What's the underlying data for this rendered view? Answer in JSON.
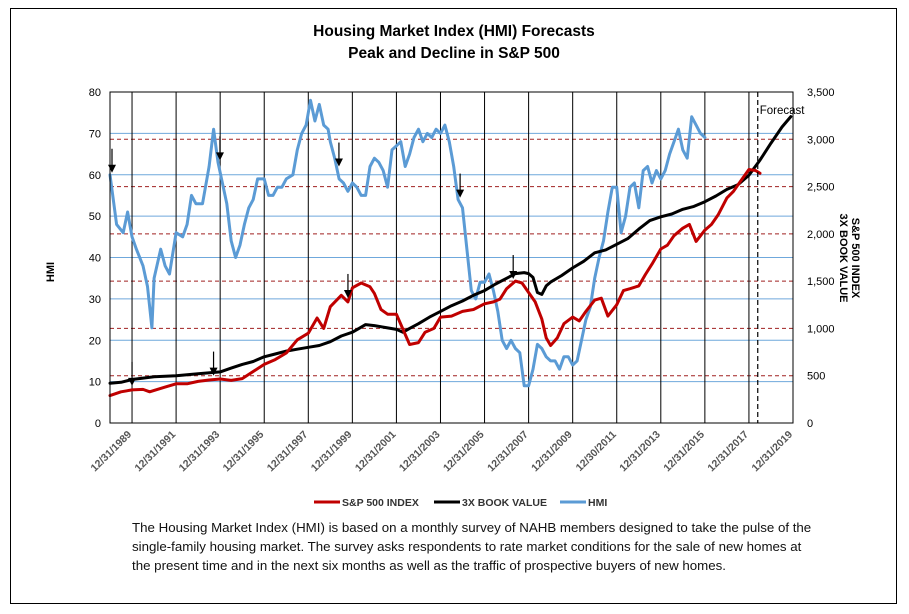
{
  "chart_data": {
    "type": "line",
    "title": "Housing Market Index (HMI) Forecasts",
    "subtitle": "Peak and Decline in S&P 500",
    "ylabel_left": "HMI",
    "ylabel_right_line1": "S&P 500 INDEX",
    "ylabel_right_line2": "3X BOOK VALUE",
    "ylim_left": [
      0,
      80
    ],
    "ylim_right": [
      0,
      3500
    ],
    "xlim": [
      1989.0,
      2020.0
    ],
    "yticks_left": [
      "0",
      "10",
      "20",
      "30",
      "40",
      "50",
      "60",
      "70",
      "80"
    ],
    "yticks_right": [
      "0",
      "500",
      "1,000",
      "1,500",
      "2,000",
      "2,500",
      "3,000",
      "3,500"
    ],
    "xticks": [
      {
        "x": 1990.0,
        "label": "12/31/1989"
      },
      {
        "x": 1992.0,
        "label": "12/31/1991"
      },
      {
        "x": 1994.0,
        "label": "12/31/1993"
      },
      {
        "x": 1996.0,
        "label": "12/31/1995"
      },
      {
        "x": 1998.0,
        "label": "12/31/1997"
      },
      {
        "x": 2000.0,
        "label": "12/31/1999"
      },
      {
        "x": 2002.0,
        "label": "12/31/2001"
      },
      {
        "x": 2004.0,
        "label": "12/31/2003"
      },
      {
        "x": 2006.0,
        "label": "12/31/2005"
      },
      {
        "x": 2008.0,
        "label": "12/31/2007"
      },
      {
        "x": 2010.0,
        "label": "12/31/2009"
      },
      {
        "x": 2012.0,
        "label": "12/30/2011"
      },
      {
        "x": 2014.0,
        "label": "12/31/2013"
      },
      {
        "x": 2016.0,
        "label": "12/31/2015"
      },
      {
        "x": 2018.0,
        "label": "12/31/2017"
      },
      {
        "x": 2020.0,
        "label": "12/31/2019"
      }
    ],
    "legend_position": "bottom",
    "forecast_label": "Forecast",
    "forecast_x": 2018.4,
    "series": [
      {
        "name": "S&P 500 INDEX",
        "axis": "right",
        "color": "#C00000",
        "points": [
          [
            1989.0,
            290
          ],
          [
            1989.5,
            330
          ],
          [
            1990.0,
            350
          ],
          [
            1990.5,
            355
          ],
          [
            1990.8,
            330
          ],
          [
            1991.0,
            345
          ],
          [
            1991.5,
            380
          ],
          [
            1992.0,
            415
          ],
          [
            1992.5,
            415
          ],
          [
            1993.0,
            440
          ],
          [
            1993.5,
            455
          ],
          [
            1994.0,
            465
          ],
          [
            1994.5,
            450
          ],
          [
            1995.0,
            470
          ],
          [
            1995.5,
            545
          ],
          [
            1996.0,
            620
          ],
          [
            1996.5,
            670
          ],
          [
            1997.0,
            740
          ],
          [
            1997.5,
            880
          ],
          [
            1998.0,
            950
          ],
          [
            1998.4,
            1110
          ],
          [
            1998.7,
            1000
          ],
          [
            1999.0,
            1230
          ],
          [
            1999.5,
            1350
          ],
          [
            1999.8,
            1280
          ],
          [
            2000.0,
            1430
          ],
          [
            2000.4,
            1480
          ],
          [
            2000.8,
            1440
          ],
          [
            2001.0,
            1370
          ],
          [
            2001.3,
            1200
          ],
          [
            2001.6,
            1150
          ],
          [
            2002.0,
            1150
          ],
          [
            2002.3,
            990
          ],
          [
            2002.6,
            830
          ],
          [
            2003.0,
            850
          ],
          [
            2003.3,
            960
          ],
          [
            2003.7,
            1000
          ],
          [
            2004.0,
            1120
          ],
          [
            2004.5,
            1130
          ],
          [
            2005.0,
            1180
          ],
          [
            2005.5,
            1200
          ],
          [
            2006.0,
            1260
          ],
          [
            2006.4,
            1280
          ],
          [
            2006.7,
            1310
          ],
          [
            2007.0,
            1420
          ],
          [
            2007.4,
            1500
          ],
          [
            2007.7,
            1480
          ],
          [
            2008.0,
            1380
          ],
          [
            2008.3,
            1280
          ],
          [
            2008.6,
            1100
          ],
          [
            2008.8,
            900
          ],
          [
            2009.0,
            820
          ],
          [
            2009.3,
            900
          ],
          [
            2009.6,
            1050
          ],
          [
            2010.0,
            1120
          ],
          [
            2010.3,
            1080
          ],
          [
            2010.6,
            1180
          ],
          [
            2011.0,
            1300
          ],
          [
            2011.3,
            1320
          ],
          [
            2011.6,
            1130
          ],
          [
            2012.0,
            1250
          ],
          [
            2012.3,
            1400
          ],
          [
            2012.6,
            1420
          ],
          [
            2013.0,
            1450
          ],
          [
            2013.3,
            1570
          ],
          [
            2013.6,
            1680
          ],
          [
            2014.0,
            1840
          ],
          [
            2014.3,
            1880
          ],
          [
            2014.6,
            1980
          ],
          [
            2015.0,
            2060
          ],
          [
            2015.3,
            2100
          ],
          [
            2015.6,
            1920
          ],
          [
            2016.0,
            2040
          ],
          [
            2016.3,
            2100
          ],
          [
            2016.6,
            2200
          ],
          [
            2017.0,
            2380
          ],
          [
            2017.3,
            2450
          ],
          [
            2017.6,
            2550
          ],
          [
            2018.0,
            2680
          ],
          [
            2018.3,
            2670
          ],
          [
            2018.5,
            2640
          ]
        ]
      },
      {
        "name": "3X BOOK VALUE",
        "axis": "right",
        "color": "#000000",
        "points": [
          [
            1989.0,
            420
          ],
          [
            1989.5,
            430
          ],
          [
            1990.0,
            460
          ],
          [
            1991.0,
            490
          ],
          [
            1992.0,
            500
          ],
          [
            1993.0,
            520
          ],
          [
            1994.0,
            540
          ],
          [
            1994.5,
            580
          ],
          [
            1995.0,
            620
          ],
          [
            1995.5,
            650
          ],
          [
            1996.0,
            700
          ],
          [
            1996.5,
            730
          ],
          [
            1997.0,
            760
          ],
          [
            1997.5,
            780
          ],
          [
            1998.0,
            800
          ],
          [
            1998.5,
            820
          ],
          [
            1999.0,
            860
          ],
          [
            1999.5,
            920
          ],
          [
            2000.0,
            960
          ],
          [
            2000.3,
            1000
          ],
          [
            2000.6,
            1040
          ],
          [
            2001.0,
            1030
          ],
          [
            2001.5,
            1010
          ],
          [
            2002.0,
            990
          ],
          [
            2002.3,
            960
          ],
          [
            2002.6,
            1000
          ],
          [
            2003.0,
            1050
          ],
          [
            2003.5,
            1120
          ],
          [
            2004.0,
            1180
          ],
          [
            2004.5,
            1240
          ],
          [
            2005.0,
            1290
          ],
          [
            2005.5,
            1350
          ],
          [
            2006.0,
            1400
          ],
          [
            2006.5,
            1470
          ],
          [
            2007.0,
            1530
          ],
          [
            2007.4,
            1580
          ],
          [
            2007.8,
            1590
          ],
          [
            2008.0,
            1580
          ],
          [
            2008.2,
            1540
          ],
          [
            2008.4,
            1380
          ],
          [
            2008.6,
            1360
          ],
          [
            2008.8,
            1450
          ],
          [
            2009.0,
            1490
          ],
          [
            2009.5,
            1560
          ],
          [
            2010.0,
            1640
          ],
          [
            2010.5,
            1710
          ],
          [
            2011.0,
            1800
          ],
          [
            2011.5,
            1830
          ],
          [
            2012.0,
            1890
          ],
          [
            2012.5,
            1950
          ],
          [
            2013.0,
            2050
          ],
          [
            2013.5,
            2140
          ],
          [
            2014.0,
            2180
          ],
          [
            2014.5,
            2210
          ],
          [
            2015.0,
            2260
          ],
          [
            2015.5,
            2290
          ],
          [
            2016.0,
            2340
          ],
          [
            2016.5,
            2400
          ],
          [
            2017.0,
            2470
          ],
          [
            2017.5,
            2520
          ],
          [
            2018.0,
            2620
          ],
          [
            2018.5,
            2780
          ],
          [
            2019.0,
            2960
          ],
          [
            2019.5,
            3130
          ],
          [
            2019.9,
            3240
          ]
        ]
      },
      {
        "name": "HMI",
        "axis": "left",
        "color": "#5B9BD5",
        "points": [
          [
            1989.0,
            60
          ],
          [
            1989.3,
            48
          ],
          [
            1989.6,
            46
          ],
          [
            1989.8,
            51
          ],
          [
            1990.0,
            45
          ],
          [
            1990.2,
            42
          ],
          [
            1990.5,
            38
          ],
          [
            1990.7,
            33
          ],
          [
            1990.9,
            23
          ],
          [
            1991.0,
            35
          ],
          [
            1991.3,
            42
          ],
          [
            1991.5,
            38
          ],
          [
            1991.7,
            36
          ],
          [
            1992.0,
            46
          ],
          [
            1992.3,
            45
          ],
          [
            1992.5,
            48
          ],
          [
            1992.7,
            55
          ],
          [
            1992.9,
            53
          ],
          [
            1993.2,
            53
          ],
          [
            1993.5,
            62
          ],
          [
            1993.7,
            71
          ],
          [
            1993.9,
            63
          ],
          [
            1994.1,
            58
          ],
          [
            1994.3,
            53
          ],
          [
            1994.5,
            44
          ],
          [
            1994.7,
            40
          ],
          [
            1994.9,
            43
          ],
          [
            1995.1,
            48
          ],
          [
            1995.3,
            52
          ],
          [
            1995.5,
            54
          ],
          [
            1995.7,
            59
          ],
          [
            1996.0,
            59
          ],
          [
            1996.2,
            55
          ],
          [
            1996.4,
            55
          ],
          [
            1996.6,
            57
          ],
          [
            1996.8,
            57
          ],
          [
            1997.0,
            59
          ],
          [
            1997.3,
            60
          ],
          [
            1997.5,
            66
          ],
          [
            1997.7,
            70
          ],
          [
            1997.9,
            72
          ],
          [
            1998.1,
            78
          ],
          [
            1998.3,
            73
          ],
          [
            1998.5,
            77
          ],
          [
            1998.7,
            72
          ],
          [
            1998.9,
            71
          ],
          [
            1999.0,
            68
          ],
          [
            1999.2,
            64
          ],
          [
            1999.4,
            59
          ],
          [
            1999.6,
            58
          ],
          [
            1999.8,
            56
          ],
          [
            2000.0,
            58
          ],
          [
            2000.2,
            57
          ],
          [
            2000.4,
            55
          ],
          [
            2000.6,
            55
          ],
          [
            2000.8,
            62
          ],
          [
            2001.0,
            64
          ],
          [
            2001.2,
            63
          ],
          [
            2001.4,
            61
          ],
          [
            2001.6,
            57
          ],
          [
            2001.8,
            66
          ],
          [
            2002.0,
            67
          ],
          [
            2002.2,
            68
          ],
          [
            2002.4,
            62
          ],
          [
            2002.6,
            65
          ],
          [
            2002.8,
            69
          ],
          [
            2003.0,
            71
          ],
          [
            2003.2,
            68
          ],
          [
            2003.4,
            70
          ],
          [
            2003.6,
            69
          ],
          [
            2003.8,
            71
          ],
          [
            2004.0,
            70
          ],
          [
            2004.2,
            72
          ],
          [
            2004.4,
            68
          ],
          [
            2004.6,
            62
          ],
          [
            2004.8,
            54
          ],
          [
            2005.0,
            52
          ],
          [
            2005.2,
            42
          ],
          [
            2005.4,
            32
          ],
          [
            2005.6,
            30
          ],
          [
            2005.8,
            34
          ],
          [
            2006.0,
            34
          ],
          [
            2006.2,
            36
          ],
          [
            2006.4,
            32
          ],
          [
            2006.6,
            27
          ],
          [
            2006.8,
            20
          ],
          [
            2007.0,
            18
          ],
          [
            2007.2,
            20
          ],
          [
            2007.4,
            18
          ],
          [
            2007.6,
            17
          ],
          [
            2007.8,
            9
          ],
          [
            2008.0,
            9
          ],
          [
            2008.2,
            13
          ],
          [
            2008.4,
            19
          ],
          [
            2008.6,
            18
          ],
          [
            2008.8,
            16
          ],
          [
            2009.0,
            15
          ],
          [
            2009.2,
            15
          ],
          [
            2009.4,
            13
          ],
          [
            2009.6,
            16
          ],
          [
            2009.8,
            16
          ],
          [
            2010.0,
            14
          ],
          [
            2010.2,
            15
          ],
          [
            2010.4,
            20
          ],
          [
            2010.6,
            25
          ],
          [
            2010.8,
            28
          ],
          [
            2011.0,
            35
          ],
          [
            2011.2,
            40
          ],
          [
            2011.4,
            44
          ],
          [
            2011.6,
            51
          ],
          [
            2011.8,
            57
          ],
          [
            2012.0,
            57
          ],
          [
            2012.2,
            46
          ],
          [
            2012.4,
            50
          ],
          [
            2012.6,
            57
          ],
          [
            2012.8,
            58
          ],
          [
            2013.0,
            52
          ],
          [
            2013.2,
            61
          ],
          [
            2013.4,
            62
          ],
          [
            2013.6,
            58
          ],
          [
            2013.8,
            61
          ],
          [
            2014.0,
            59
          ],
          [
            2014.2,
            61
          ],
          [
            2014.4,
            65
          ],
          [
            2014.6,
            68
          ],
          [
            2014.8,
            71
          ],
          [
            2015.0,
            66
          ],
          [
            2015.2,
            64
          ],
          [
            2015.4,
            74
          ],
          [
            2015.6,
            72
          ],
          [
            2015.8,
            70
          ],
          [
            2016.0,
            69
          ]
        ]
      }
    ],
    "arrows_hmi_peaks": [
      1989.0,
      1993.9,
      1999.3,
      2004.8
    ],
    "arrows_sp_peaks": [
      1990.0,
      1993.7,
      1999.8,
      2007.3
    ]
  },
  "caption": "The Housing Market Index (HMI) is based on a monthly survey of NAHB members designed to take the pulse of the single-family housing market. The survey asks respondents to rate market conditions for the sale of new homes at the present time and in the next six months as well as the traffic of prospective buyers of new homes."
}
